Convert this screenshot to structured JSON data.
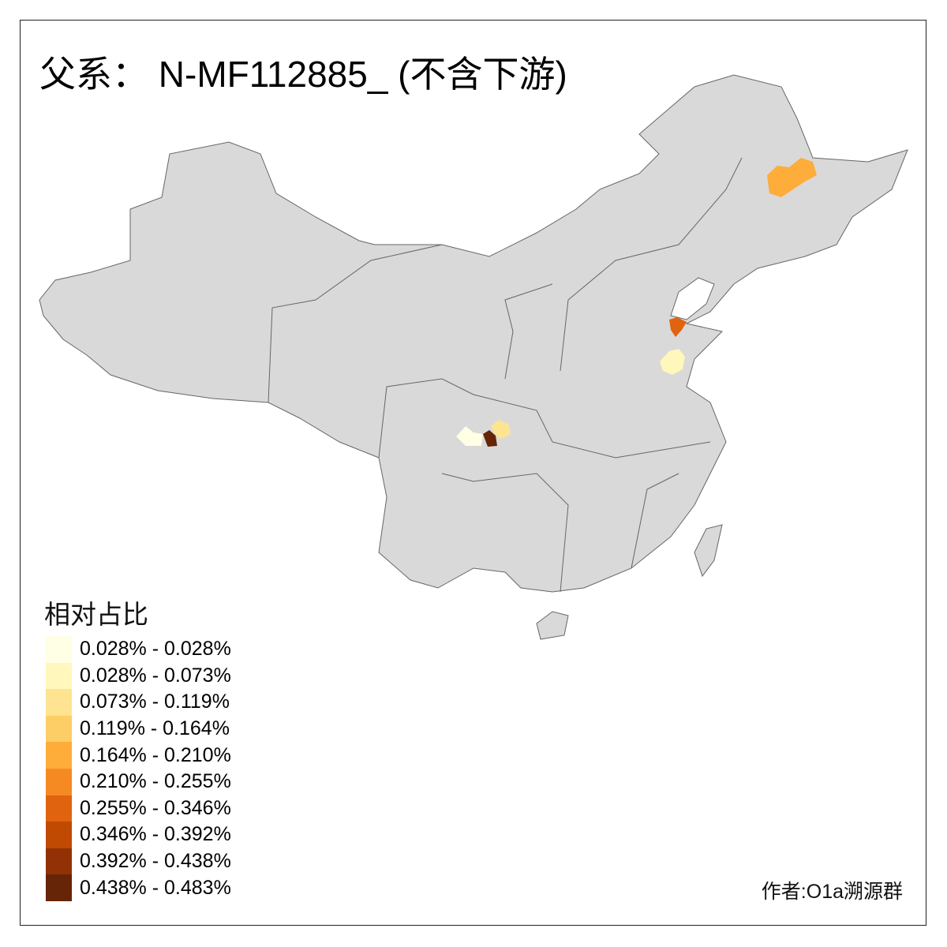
{
  "title": "父系： N-MF112885_ (不含下游)",
  "legend": {
    "title": "相对占比",
    "items": [
      {
        "label": "0.028% - 0.028%",
        "color": "#FFFFE5"
      },
      {
        "label": "0.028% - 0.073%",
        "color": "#FFF7BC"
      },
      {
        "label": "0.073% - 0.119%",
        "color": "#FEE391"
      },
      {
        "label": "0.119% - 0.164%",
        "color": "#FECE66"
      },
      {
        "label": "0.164% - 0.210%",
        "color": "#FEAC3A"
      },
      {
        "label": "0.210% - 0.255%",
        "color": "#F58A22"
      },
      {
        "label": "0.255% - 0.346%",
        "color": "#E0630F"
      },
      {
        "label": "0.346% - 0.392%",
        "color": "#C04A02"
      },
      {
        "label": "0.392% - 0.438%",
        "color": "#923105"
      },
      {
        "label": "0.438% - 0.483%",
        "color": "#662506"
      }
    ]
  },
  "map": {
    "base_color": "#D9D9D9",
    "border_color": "#666666",
    "highlighted_regions": [
      {
        "area": "Heilongjiang",
        "class_index": 4
      },
      {
        "area": "Shandong north",
        "class_index": 6
      },
      {
        "area": "Shandong central",
        "class_index": 1
      },
      {
        "area": "Sichuan west",
        "class_index": 0
      },
      {
        "area": "Sichuan center",
        "class_index": 9
      },
      {
        "area": "Sichuan east",
        "class_index": 2
      }
    ]
  },
  "author": "作者:O1a溯源群"
}
